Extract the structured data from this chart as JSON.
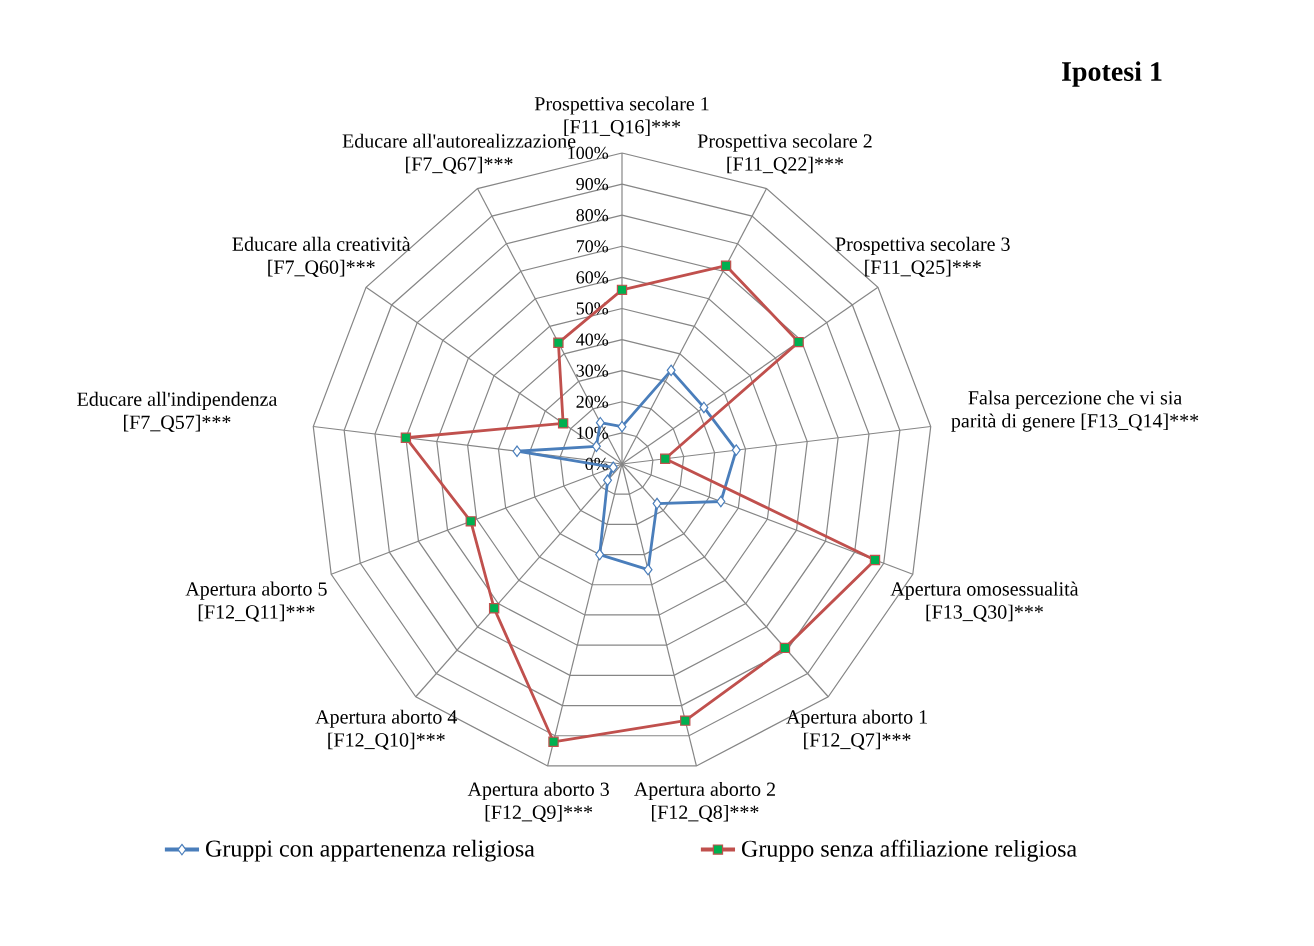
{
  "chart_data": {
    "type": "radar",
    "title": "Ipotesi 1",
    "categories": [
      "Prospettiva secolare 1 [F11_Q16]***",
      "Prospettiva secolare 2 [F11_Q22]***",
      "Prospettiva secolare 3 [F11_Q25]***",
      "Falsa percezione che vi sia parità di genere [F13_Q14]***",
      "Apertura omosessualità [F13_Q30]***",
      "Apertura aborto 1 [F12_Q7]***",
      "Apertura aborto 2 [F12_Q8]***",
      "Apertura aborto 3 [F12_Q9]***",
      "Apertura aborto 4 [F12_Q10]***",
      "Apertura aborto 5 [F12_Q11]***",
      "Educare all'indipendenza [F7_Q57]***",
      "Educare alla creatività [F7_Q60]***",
      "Educare all'autorealizzazione [F7_Q67]***"
    ],
    "series": [
      {
        "name": "Gruppi con appartenenza religiosa",
        "color": "#4a7ebb",
        "marker": "diamond",
        "values": [
          12,
          34,
          32,
          37,
          34,
          17,
          35,
          30,
          7,
          3,
          34,
          10,
          15
        ]
      },
      {
        "name": "Gruppo senza affiliazione religiosa",
        "color": "#c0504d",
        "marker": "square",
        "colors": [
          "#00b050",
          "#00b050",
          "#00b050",
          "#00b050",
          "#00b050",
          "#00b050",
          "#00b050",
          "#00b050",
          "#00b050",
          "#00b050",
          "#00b050",
          "#00b050",
          "#00b050"
        ],
        "values": [
          56,
          72,
          69,
          14,
          87,
          79,
          85,
          92,
          62,
          52,
          70,
          23,
          44
        ]
      }
    ],
    "ylim": [
      0,
      100
    ],
    "yticks": [
      {
        "value": 0,
        "label": "0%"
      },
      {
        "value": 10,
        "label": "10%"
      },
      {
        "value": 20,
        "label": "20%"
      },
      {
        "value": 30,
        "label": "30%"
      },
      {
        "value": 40,
        "label": "40%"
      },
      {
        "value": 50,
        "label": "50%"
      },
      {
        "value": 60,
        "label": "60%"
      },
      {
        "value": 70,
        "label": "70%"
      },
      {
        "value": 80,
        "label": "80%"
      },
      {
        "value": 90,
        "label": "90%"
      },
      {
        "value": 100,
        "label": "100%"
      }
    ],
    "grid": true,
    "legend": "bottom"
  }
}
